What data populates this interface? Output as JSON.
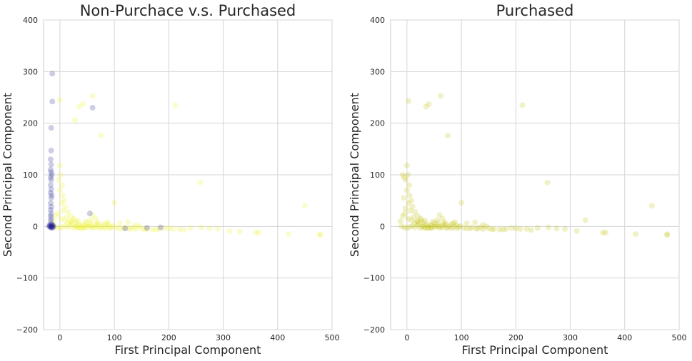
{
  "chart_data": [
    {
      "type": "scatter",
      "title": "Non-Purchace v.s. Purchased",
      "xlabel": "First Principal Component",
      "ylabel": "Second Principal Component",
      "xlim": [
        -30,
        500
      ],
      "ylim": [
        -200,
        400
      ],
      "xticks": [
        0,
        100,
        200,
        300,
        400,
        500
      ],
      "yticks": [
        -200,
        -100,
        0,
        100,
        200,
        300,
        400
      ],
      "grid": true,
      "series": [
        {
          "color": "#eef21e",
          "alpha": 0.22,
          "points": [
            [
              0,
              245
            ],
            [
              60,
              253
            ],
            [
              42,
              237
            ],
            [
              35,
              232
            ],
            [
              28,
              206
            ],
            [
              75,
              176
            ],
            [
              212,
              235
            ],
            [
              258,
              85
            ],
            [
              450,
              40
            ],
            [
              478,
              -17
            ],
            [
              478,
              -15
            ],
            [
              420,
              -15
            ],
            [
              365,
              -12
            ],
            [
              360,
              -12
            ],
            [
              330,
              -10
            ],
            [
              312,
              -9
            ],
            [
              290,
              -5
            ],
            [
              275,
              -4
            ],
            [
              260,
              -2
            ],
            [
              240,
              -3
            ],
            [
              220,
              -5
            ],
            [
              200,
              -4
            ],
            [
              182,
              -5
            ],
            [
              170,
              -6
            ],
            [
              160,
              -5
            ],
            [
              150,
              -4
            ],
            [
              140,
              -5
            ],
            [
              130,
              -3
            ],
            [
              120,
              -2
            ],
            [
              110,
              -4
            ],
            [
              100,
              46
            ],
            [
              95,
              -1
            ],
            [
              90,
              2
            ],
            [
              85,
              6
            ],
            [
              80,
              4
            ],
            [
              75,
              -2
            ],
            [
              70,
              8
            ],
            [
              65,
              15
            ],
            [
              60,
              22
            ],
            [
              55,
              12
            ],
            [
              50,
              6
            ],
            [
              45,
              2
            ],
            [
              40,
              -1
            ],
            [
              35,
              4
            ],
            [
              30,
              8
            ],
            [
              25,
              15
            ],
            [
              20,
              20
            ],
            [
              15,
              28
            ],
            [
              10,
              38
            ],
            [
              8,
              50
            ],
            [
              5,
              60
            ],
            [
              4,
              80
            ],
            [
              2,
              100
            ],
            [
              0,
              118
            ],
            [
              -2,
              90
            ],
            [
              0,
              70
            ],
            [
              3,
              45
            ],
            [
              6,
              30
            ],
            [
              12,
              18
            ],
            [
              18,
              10
            ],
            [
              22,
              5
            ],
            [
              28,
              0
            ],
            [
              32,
              -3
            ],
            [
              38,
              -4
            ],
            [
              44,
              -3
            ],
            [
              52,
              -1
            ],
            [
              58,
              0
            ],
            [
              64,
              -2
            ],
            [
              72,
              -3
            ],
            [
              82,
              -4
            ],
            [
              92,
              -4
            ],
            [
              104,
              -3
            ],
            [
              116,
              -4
            ],
            [
              128,
              -5
            ],
            [
              136,
              -2
            ],
            [
              146,
              0
            ],
            [
              156,
              -6
            ],
            [
              176,
              -6
            ],
            [
              192,
              -3
            ],
            [
              208,
              -5
            ],
            [
              228,
              -7
            ],
            [
              -10,
              0
            ],
            [
              -5,
              -2
            ],
            [
              0,
              -3
            ],
            [
              5,
              -1
            ],
            [
              10,
              1
            ],
            [
              15,
              -2
            ],
            [
              20,
              2
            ],
            [
              25,
              -3
            ],
            [
              30,
              1
            ],
            [
              35,
              -2
            ],
            [
              40,
              3
            ],
            [
              45,
              -3
            ],
            [
              50,
              0
            ],
            [
              55,
              2
            ],
            [
              60,
              -3
            ],
            [
              65,
              1
            ],
            [
              70,
              3
            ],
            [
              78,
              0
            ],
            [
              86,
              -1
            ],
            [
              98,
              1
            ],
            [
              -12,
              10
            ],
            [
              -8,
              20
            ],
            [
              -4,
              25
            ],
            [
              2,
              15
            ],
            [
              8,
              12
            ],
            [
              14,
              6
            ],
            [
              20,
              9
            ],
            [
              26,
              12
            ],
            [
              33,
              11
            ],
            [
              47,
              9
            ],
            [
              58,
              7
            ],
            [
              68,
              5
            ],
            [
              88,
              8
            ],
            [
              110,
              6
            ],
            [
              125,
              8
            ],
            [
              140,
              3
            ]
          ]
        },
        {
          "color": "#1a1a8c",
          "alpha": 0.22,
          "points": [
            [
              -14,
              296
            ],
            [
              -14,
              242
            ],
            [
              -16,
              191
            ],
            [
              60,
              230
            ],
            [
              -16,
              147
            ],
            [
              -17,
              130
            ],
            [
              -16,
              120
            ],
            [
              -17,
              110
            ],
            [
              -15,
              100
            ],
            [
              -16,
              90
            ],
            [
              -17,
              80
            ],
            [
              -16,
              72
            ],
            [
              -17,
              65
            ],
            [
              -16,
              55
            ],
            [
              -17,
              45
            ],
            [
              -16,
              38
            ],
            [
              -17,
              32
            ],
            [
              -16,
              25
            ],
            [
              -17,
              20
            ],
            [
              -16,
              15
            ],
            [
              -17,
              10
            ],
            [
              -16,
              5
            ],
            [
              -17,
              0
            ],
            [
              -16,
              -2
            ],
            [
              -15,
              1
            ],
            [
              -14,
              -1
            ],
            [
              -13,
              2
            ],
            [
              -18,
              3
            ],
            [
              -19,
              0
            ],
            [
              -18,
              -1
            ],
            [
              -15,
              -3
            ],
            [
              -14,
              3
            ],
            [
              -13,
              -2
            ],
            [
              -12,
              0
            ],
            [
              -20,
              1
            ],
            [
              55,
              25
            ],
            [
              120,
              -4
            ],
            [
              160,
              -3
            ],
            [
              185,
              -2
            ],
            [
              -15,
              60
            ],
            [
              -16,
              105
            ],
            [
              -17,
              95
            ]
          ]
        }
      ]
    },
    {
      "type": "scatter",
      "title": "Purchased",
      "xlabel": "First Principal Component",
      "ylabel": "Second Principal Component",
      "xlim": [
        -30,
        500
      ],
      "ylim": [
        -200,
        400
      ],
      "xticks": [
        0,
        100,
        200,
        300,
        400,
        500
      ],
      "yticks": [
        -200,
        -100,
        0,
        100,
        200,
        300,
        400
      ],
      "grid": true,
      "series": [
        {
          "color": "#bfbf00",
          "alpha": 0.22,
          "points": [
            [
              3,
              243
            ],
            [
              62,
              253
            ],
            [
              40,
              237
            ],
            [
              35,
              232
            ],
            [
              75,
              176
            ],
            [
              212,
              235
            ],
            [
              258,
              85
            ],
            [
              450,
              40
            ],
            [
              478,
              -17
            ],
            [
              478,
              -15
            ],
            [
              420,
              -15
            ],
            [
              365,
              -12
            ],
            [
              360,
              -12
            ],
            [
              328,
              12
            ],
            [
              312,
              -9
            ],
            [
              290,
              -5
            ],
            [
              275,
              -4
            ],
            [
              260,
              -2
            ],
            [
              240,
              -3
            ],
            [
              220,
              -5
            ],
            [
              200,
              -4
            ],
            [
              182,
              -5
            ],
            [
              170,
              -6
            ],
            [
              160,
              -5
            ],
            [
              150,
              -4
            ],
            [
              140,
              -5
            ],
            [
              130,
              -3
            ],
            [
              120,
              -2
            ],
            [
              110,
              -4
            ],
            [
              100,
              46
            ],
            [
              95,
              -1
            ],
            [
              90,
              2
            ],
            [
              85,
              6
            ],
            [
              80,
              4
            ],
            [
              75,
              -2
            ],
            [
              70,
              8
            ],
            [
              65,
              15
            ],
            [
              60,
              22
            ],
            [
              55,
              12
            ],
            [
              50,
              6
            ],
            [
              45,
              2
            ],
            [
              40,
              -1
            ],
            [
              35,
              4
            ],
            [
              30,
              8
            ],
            [
              25,
              15
            ],
            [
              20,
              20
            ],
            [
              15,
              28
            ],
            [
              10,
              38
            ],
            [
              8,
              50
            ],
            [
              5,
              60
            ],
            [
              4,
              80
            ],
            [
              2,
              100
            ],
            [
              0,
              118
            ],
            [
              -2,
              90
            ],
            [
              0,
              70
            ],
            [
              3,
              45
            ],
            [
              6,
              30
            ],
            [
              12,
              18
            ],
            [
              18,
              10
            ],
            [
              22,
              5
            ],
            [
              28,
              0
            ],
            [
              32,
              -3
            ],
            [
              38,
              -4
            ],
            [
              44,
              -3
            ],
            [
              52,
              -1
            ],
            [
              58,
              0
            ],
            [
              64,
              -2
            ],
            [
              72,
              -3
            ],
            [
              82,
              -4
            ],
            [
              92,
              -4
            ],
            [
              104,
              -3
            ],
            [
              116,
              -4
            ],
            [
              128,
              -5
            ],
            [
              136,
              -2
            ],
            [
              146,
              0
            ],
            [
              156,
              -6
            ],
            [
              176,
              -6
            ],
            [
              192,
              -3
            ],
            [
              208,
              -5
            ],
            [
              228,
              -7
            ],
            [
              -10,
              0
            ],
            [
              -5,
              -2
            ],
            [
              0,
              -3
            ],
            [
              5,
              -1
            ],
            [
              10,
              1
            ],
            [
              15,
              -2
            ],
            [
              20,
              2
            ],
            [
              25,
              -3
            ],
            [
              30,
              1
            ],
            [
              35,
              -2
            ],
            [
              40,
              3
            ],
            [
              45,
              -3
            ],
            [
              50,
              0
            ],
            [
              55,
              2
            ],
            [
              60,
              -3
            ],
            [
              65,
              1
            ],
            [
              70,
              3
            ],
            [
              78,
              0
            ],
            [
              86,
              -1
            ],
            [
              98,
              1
            ],
            [
              -12,
              10
            ],
            [
              -8,
              20
            ],
            [
              -4,
              25
            ],
            [
              2,
              15
            ],
            [
              8,
              12
            ],
            [
              14,
              6
            ],
            [
              20,
              9
            ],
            [
              26,
              12
            ],
            [
              33,
              11
            ],
            [
              47,
              9
            ],
            [
              58,
              7
            ],
            [
              68,
              5
            ],
            [
              88,
              8
            ],
            [
              110,
              6
            ],
            [
              125,
              8
            ],
            [
              140,
              3
            ],
            [
              -8,
              100
            ],
            [
              -5,
              95
            ],
            [
              -6,
              55
            ],
            [
              -3,
              35
            ]
          ]
        }
      ]
    }
  ]
}
